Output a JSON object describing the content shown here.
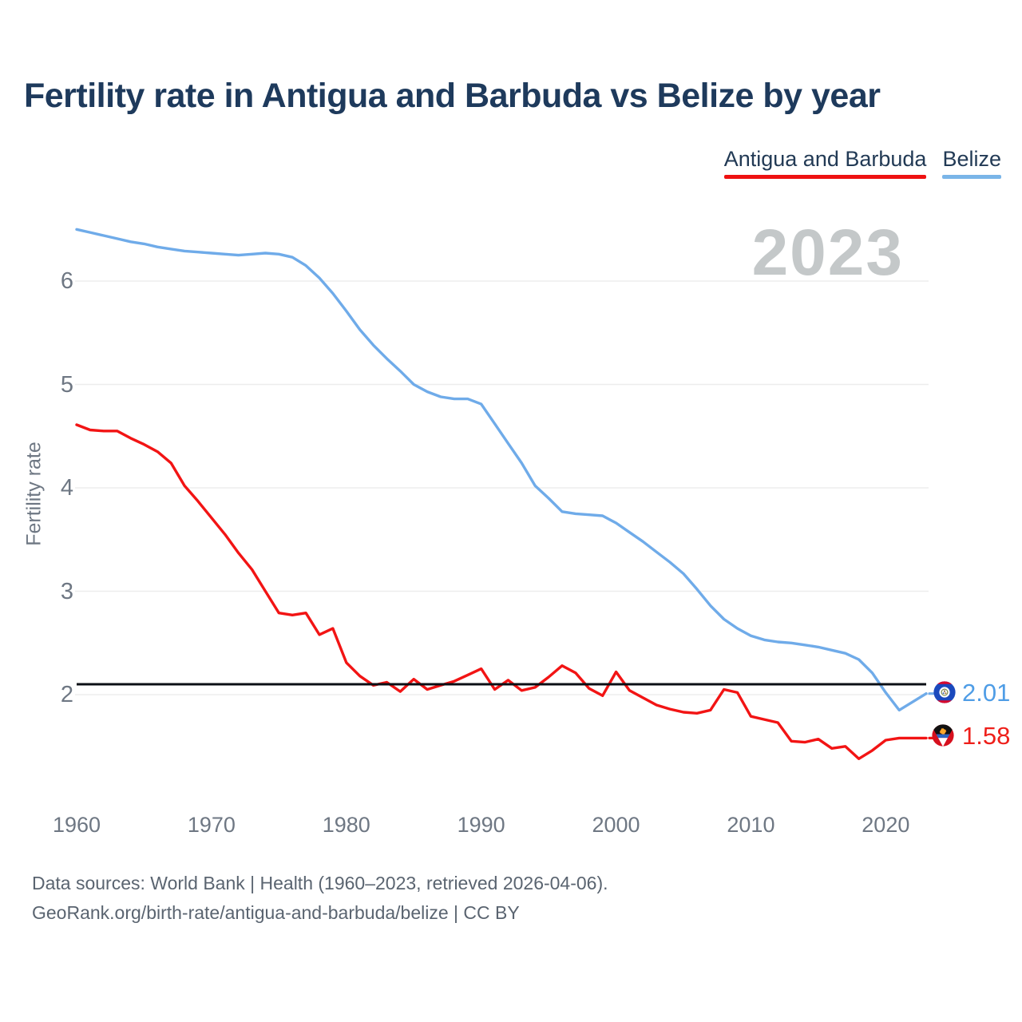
{
  "title": "Fertility rate in Antigua and Barbuda vs Belize by year",
  "watermark": "2023",
  "legend": [
    {
      "label": "Antigua and Barbuda",
      "color": "#ee1111"
    },
    {
      "label": "Belize",
      "color": "#7ab5e8"
    }
  ],
  "chart_data": {
    "type": "line",
    "title": "Fertility rate in Antigua and Barbuda vs Belize by year",
    "xlabel": "",
    "ylabel": "Fertility rate",
    "x_ticks": [
      1960,
      1970,
      1980,
      1990,
      2000,
      2010,
      2020
    ],
    "y_ticks": [
      2,
      3,
      4,
      5,
      6
    ],
    "ylim": [
      1.3,
      6.6
    ],
    "xlim": [
      1960,
      2023
    ],
    "grid": true,
    "legend_position": "top-right",
    "current_year_badge": "2023",
    "reference_line": {
      "value": 2.1,
      "color": "#0b0f15"
    },
    "x": [
      1960,
      1961,
      1962,
      1963,
      1964,
      1965,
      1966,
      1967,
      1968,
      1969,
      1970,
      1971,
      1972,
      1973,
      1974,
      1975,
      1976,
      1977,
      1978,
      1979,
      1980,
      1981,
      1982,
      1983,
      1984,
      1985,
      1986,
      1987,
      1988,
      1989,
      1990,
      1991,
      1992,
      1993,
      1994,
      1995,
      1996,
      1997,
      1998,
      1999,
      2000,
      2001,
      2002,
      2003,
      2004,
      2005,
      2006,
      2007,
      2008,
      2009,
      2010,
      2011,
      2012,
      2013,
      2014,
      2015,
      2016,
      2017,
      2018,
      2019,
      2020,
      2021,
      2022,
      2023
    ],
    "series": [
      {
        "name": "Antigua and Barbuda",
        "color": "#f21414",
        "end_label": "1.58",
        "end_value": 1.58,
        "flag_icon": "antigua-and-barbuda-flag",
        "values": [
          4.61,
          4.56,
          4.55,
          4.55,
          4.48,
          4.42,
          4.35,
          4.24,
          4.02,
          3.87,
          3.71,
          3.55,
          3.37,
          3.21,
          3.0,
          2.79,
          2.77,
          2.79,
          2.58,
          2.64,
          2.31,
          2.18,
          2.09,
          2.12,
          2.03,
          2.15,
          2.05,
          2.09,
          2.13,
          2.19,
          2.25,
          2.05,
          2.14,
          2.04,
          2.07,
          2.17,
          2.28,
          2.21,
          2.06,
          1.99,
          2.22,
          2.04,
          1.97,
          1.9,
          1.86,
          1.83,
          1.82,
          1.85,
          2.05,
          2.02,
          1.79,
          1.76,
          1.73,
          1.55,
          1.54,
          1.57,
          1.48,
          1.5,
          1.38,
          1.46,
          1.56,
          1.58,
          1.58,
          1.58
        ]
      },
      {
        "name": "Belize",
        "color": "#6fabe9",
        "end_label": "2.01",
        "end_value": 2.01,
        "flag_icon": "belize-flag",
        "values": [
          6.5,
          6.47,
          6.44,
          6.41,
          6.38,
          6.36,
          6.33,
          6.31,
          6.29,
          6.28,
          6.27,
          6.26,
          6.25,
          6.26,
          6.27,
          6.26,
          6.23,
          6.15,
          6.03,
          5.88,
          5.71,
          5.53,
          5.38,
          5.25,
          5.13,
          5.0,
          4.93,
          4.88,
          4.86,
          4.86,
          4.81,
          4.62,
          4.43,
          4.24,
          4.02,
          3.9,
          3.77,
          3.75,
          3.74,
          3.73,
          3.66,
          3.57,
          3.48,
          3.38,
          3.28,
          3.17,
          3.02,
          2.86,
          2.73,
          2.64,
          2.57,
          2.53,
          2.51,
          2.5,
          2.48,
          2.46,
          2.43,
          2.4,
          2.34,
          2.21,
          2.02,
          1.85,
          1.93,
          2.01
        ]
      }
    ]
  },
  "footer": {
    "line1": "Data sources: World Bank | Health (1960–2023, retrieved 2026-04-06).",
    "line2": "GeoRank.org/birth-rate/antigua-and-barbuda/belize | CC BY"
  }
}
